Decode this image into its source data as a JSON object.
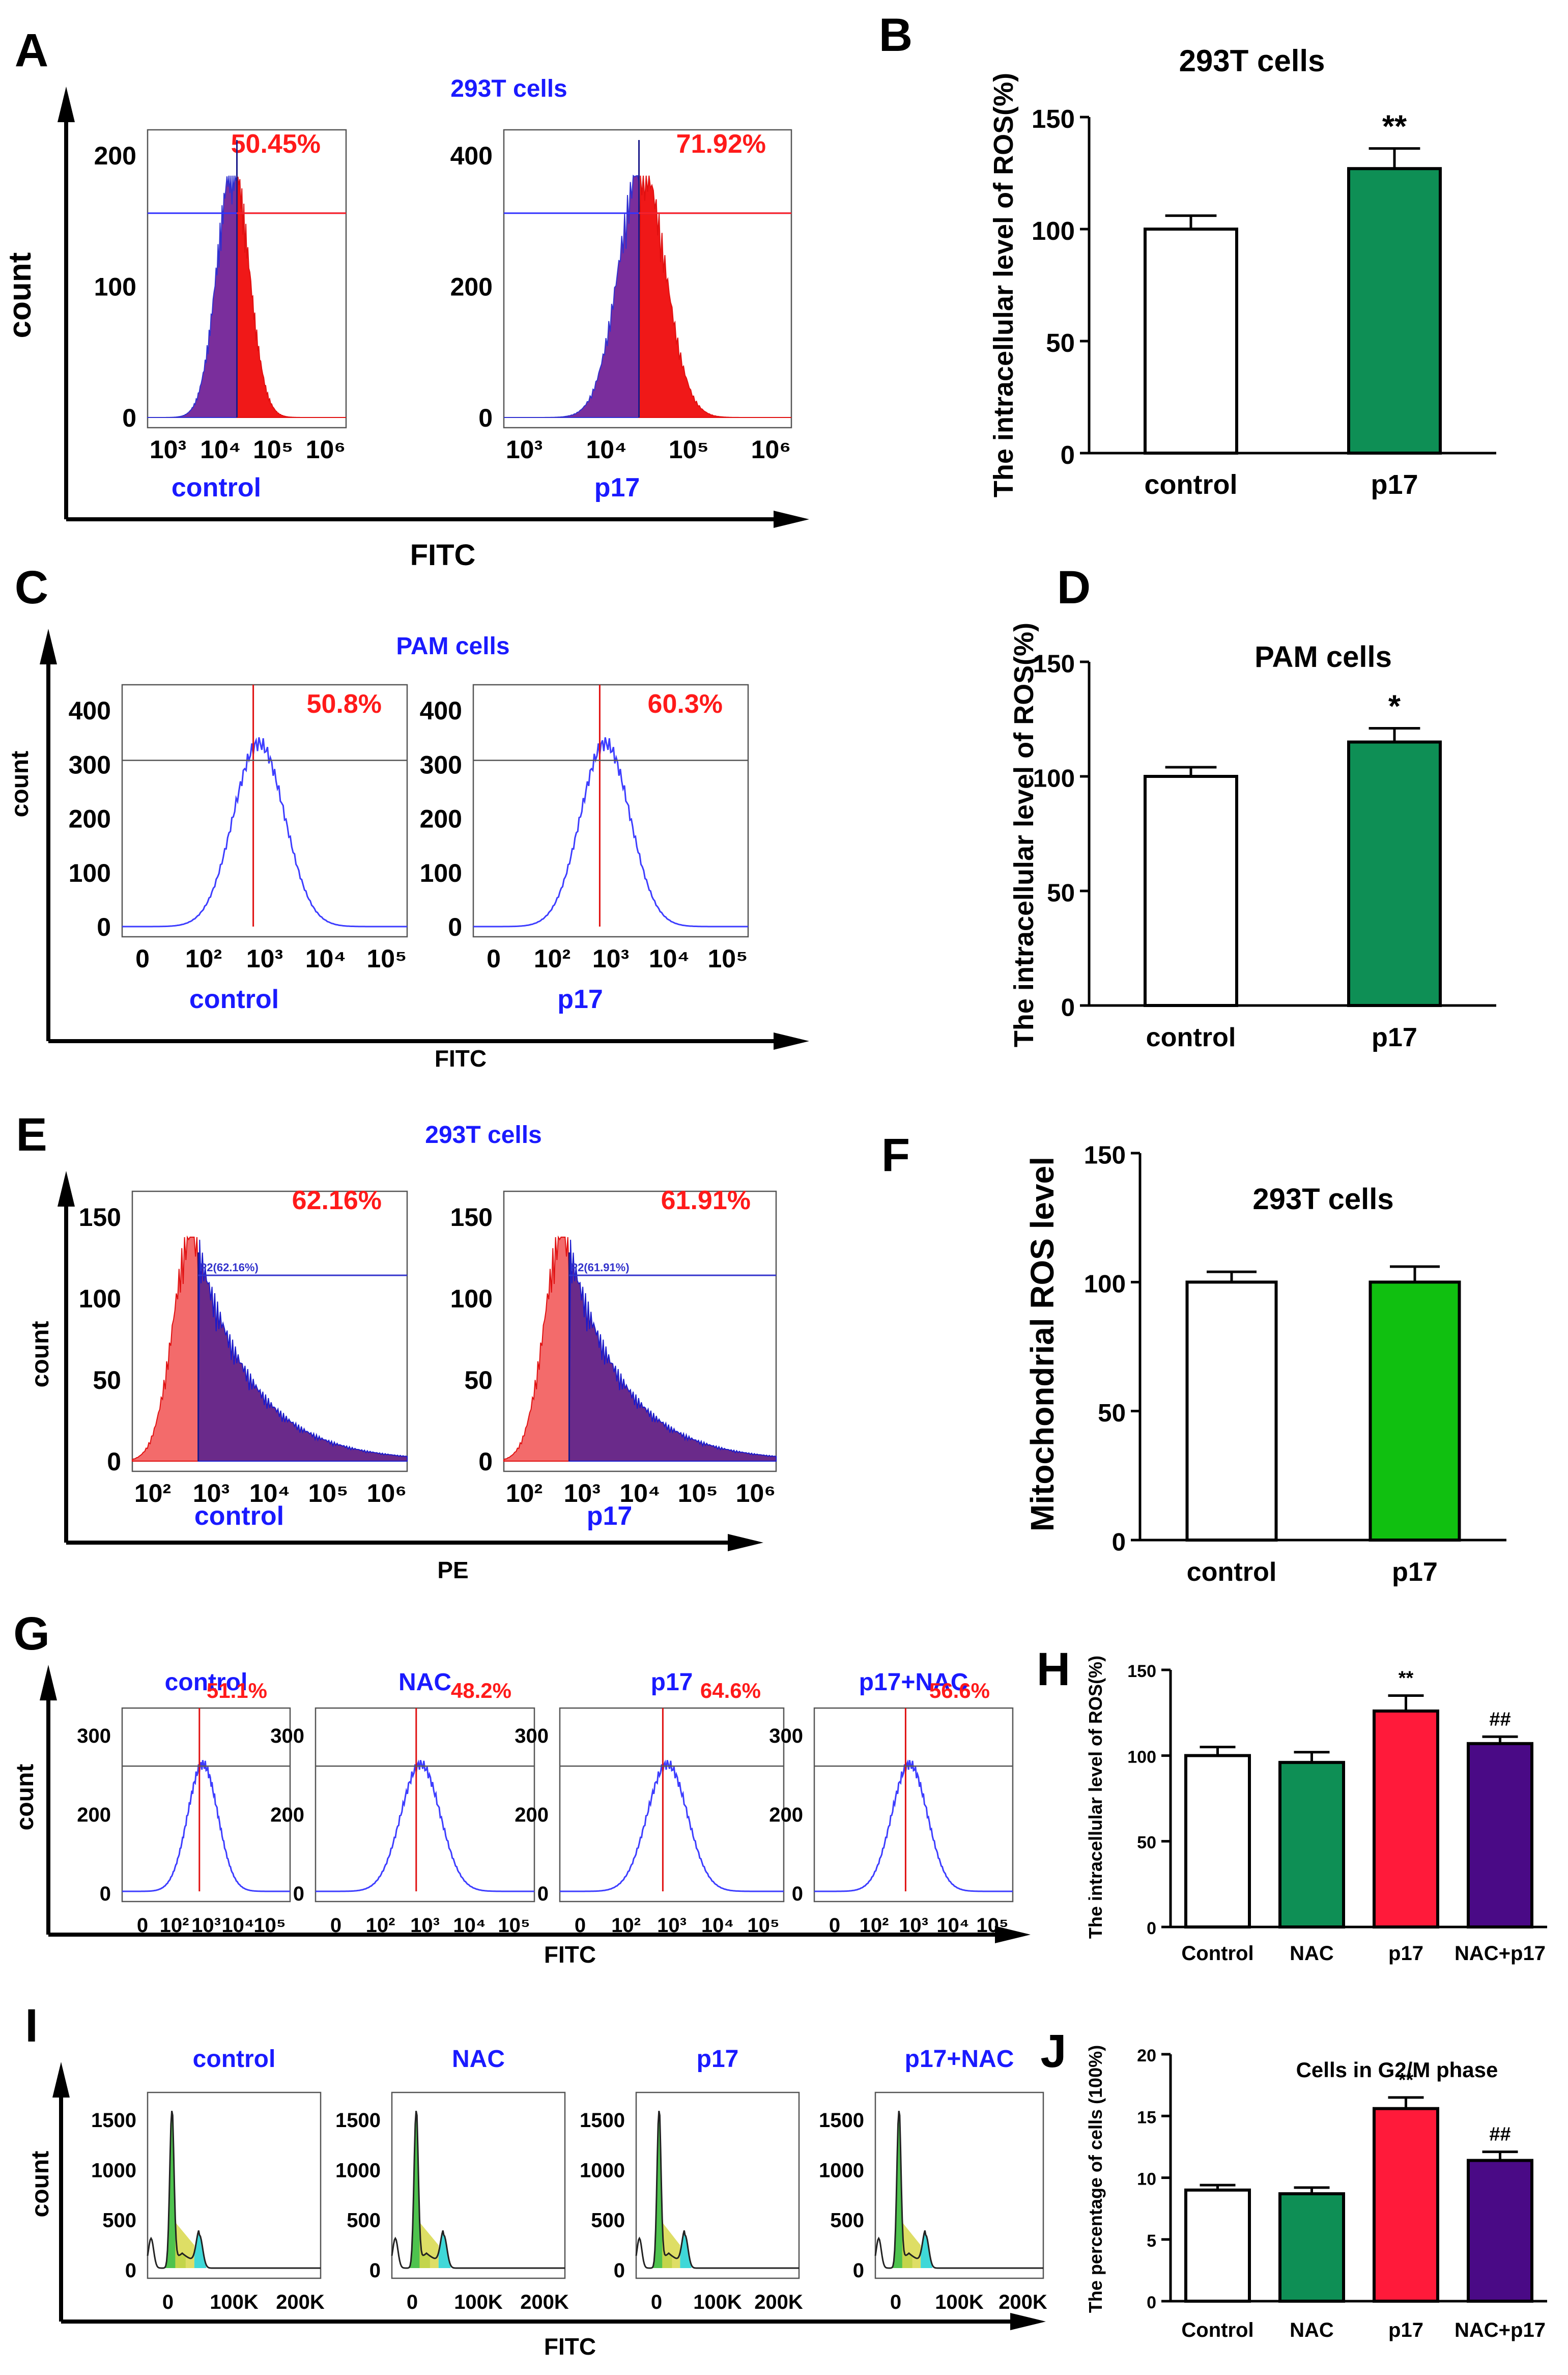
{
  "panels": [
    {
      "letter": "A",
      "kind": "histogram",
      "title": "293T cells",
      "xaxis_label": "FITC",
      "yaxis_label": "count",
      "style": "filled-purple-red",
      "ticks_x": [
        "10³",
        "10⁴",
        "10⁵",
        "10⁶"
      ],
      "subplots": [
        {
          "label": "control",
          "percent": "50.45%",
          "yticks": [
            "0",
            "100",
            "200"
          ]
        },
        {
          "label": "p17",
          "percent": "71.92%",
          "yticks": [
            "0",
            "200",
            "400"
          ]
        }
      ]
    },
    {
      "letter": "B",
      "kind": "bar",
      "title": "293T cells",
      "ylabel": "The intracellular level of ROS(%)"
    },
    {
      "letter": "C",
      "kind": "histogram",
      "title": "PAM cells",
      "xaxis_label": "FITC",
      "yaxis_label": "count",
      "style": "outline-blue",
      "ticks_x": [
        "0",
        "10²",
        "10³",
        "10⁴",
        "10⁵"
      ],
      "subplots": [
        {
          "label": "control",
          "percent": "50.8%",
          "yticks": [
            "0",
            "100",
            "200",
            "300",
            "400"
          ]
        },
        {
          "label": "p17",
          "percent": "60.3%",
          "yticks": [
            "0",
            "100",
            "200",
            "300",
            "400"
          ]
        }
      ]
    },
    {
      "letter": "D",
      "kind": "bar",
      "title": "PAM cells",
      "ylabel": "The intracellular level of ROS(%)"
    },
    {
      "letter": "E",
      "kind": "histogram",
      "title": "293T cells",
      "xaxis_label": "PE",
      "yaxis_label": "count",
      "style": "filled-red-purple",
      "ticks_x": [
        "10²",
        "10³",
        "10⁴",
        "10⁵",
        "10⁶"
      ],
      "subplots": [
        {
          "label": "control",
          "percent": "62.16%",
          "gate": "P2(62.16%)",
          "yticks": [
            "0",
            "50",
            "100",
            "150"
          ]
        },
        {
          "label": "p17",
          "percent": "61.91%",
          "gate": "P2(61.91%)",
          "yticks": [
            "0",
            "50",
            "100",
            "150"
          ]
        }
      ]
    },
    {
      "letter": "F",
      "kind": "bar",
      "title": "293T cells",
      "ylabel": "Mitochondrial ROS level"
    },
    {
      "letter": "G",
      "kind": "histogram",
      "title": "",
      "xaxis_label": "FITC",
      "yaxis_label": "count",
      "style": "outline-blue",
      "ticks_x": [
        "0",
        "10²",
        "10³",
        "10⁴",
        "10⁵"
      ],
      "subplots": [
        {
          "label": "control",
          "percent": "51.1%",
          "yticks": [
            "0",
            "200",
            "300"
          ]
        },
        {
          "label": "NAC",
          "percent": "48.2%",
          "yticks": [
            "0",
            "200",
            "300"
          ]
        },
        {
          "label": "p17",
          "percent": "64.6%",
          "yticks": [
            "0",
            "200",
            "300"
          ]
        },
        {
          "label": "p17+NAC",
          "percent": "56.6%",
          "yticks": [
            "0",
            "200",
            "300"
          ]
        }
      ]
    },
    {
      "letter": "H",
      "kind": "bar",
      "title": "",
      "ylabel": "The intracellular level of ROS(%)"
    },
    {
      "letter": "I",
      "kind": "histogram",
      "title": "",
      "xaxis_label": "FITC",
      "yaxis_label": "count",
      "style": "cell-cycle",
      "ticks_x": [
        "0",
        "100K",
        "200K"
      ],
      "subplots": [
        {
          "label": "control",
          "yticks": [
            "0",
            "500",
            "1000",
            "1500"
          ]
        },
        {
          "label": "NAC",
          "yticks": [
            "0",
            "500",
            "1000",
            "1500"
          ]
        },
        {
          "label": "p17",
          "yticks": [
            "0",
            "500",
            "1000",
            "1500"
          ]
        },
        {
          "label": "p17+NAC",
          "yticks": [
            "0",
            "500",
            "1000",
            "1500"
          ]
        }
      ]
    },
    {
      "letter": "J",
      "kind": "bar",
      "title": "Cells in G2/M phase",
      "ylabel": "The percentage of  cells (100%)"
    }
  ],
  "chart_data": [
    {
      "panel": "B",
      "type": "bar",
      "title": "293T cells",
      "ylabel": "The intracellular level of ROS(%)",
      "categories": [
        "control",
        "p17"
      ],
      "values": [
        100,
        127
      ],
      "errors": [
        6,
        9
      ],
      "significance": [
        "",
        "**"
      ],
      "colors": [
        "#ffffff",
        "#0e8f55"
      ],
      "ylim": [
        0,
        150
      ],
      "yticks": [
        0,
        50,
        100,
        150
      ]
    },
    {
      "panel": "D",
      "type": "bar",
      "title": "PAM cells",
      "ylabel": "The intracellular level of ROS(%)",
      "categories": [
        "control",
        "p17"
      ],
      "values": [
        100,
        115
      ],
      "errors": [
        4,
        6
      ],
      "significance": [
        "",
        "*"
      ],
      "colors": [
        "#ffffff",
        "#0e8f55"
      ],
      "ylim": [
        0,
        150
      ],
      "yticks": [
        0,
        50,
        100,
        150
      ]
    },
    {
      "panel": "F",
      "type": "bar",
      "title": "293T cells",
      "ylabel": "Mitochondrial ROS level",
      "categories": [
        "control",
        "p17"
      ],
      "values": [
        100,
        100
      ],
      "errors": [
        4,
        6
      ],
      "significance": [
        "",
        ""
      ],
      "colors": [
        "#ffffff",
        "#10c010"
      ],
      "ylim": [
        0,
        150
      ],
      "yticks": [
        0,
        50,
        100,
        150
      ]
    },
    {
      "panel": "H",
      "type": "bar",
      "title": "",
      "ylabel": "The intracellular level of ROS(%)",
      "categories": [
        "Control",
        "NAC",
        "p17",
        "NAC+p17"
      ],
      "values": [
        100,
        96,
        126,
        107
      ],
      "errors": [
        5,
        6,
        9,
        4
      ],
      "significance": [
        "",
        "",
        "**",
        "##"
      ],
      "colors": [
        "#ffffff",
        "#0e8f55",
        "#ff1a3a",
        "#4a0a86"
      ],
      "ylim": [
        0,
        150
      ],
      "yticks": [
        0,
        50,
        100,
        150
      ]
    },
    {
      "panel": "J",
      "type": "bar",
      "title": "Cells in G2/M phase",
      "ylabel": "The percentage of  cells (100%)",
      "categories": [
        "Control",
        "NAC",
        "p17",
        "NAC+p17"
      ],
      "values": [
        9.0,
        8.7,
        15.6,
        11.4
      ],
      "errors": [
        0.4,
        0.5,
        0.9,
        0.7
      ],
      "significance": [
        "",
        "",
        "**",
        "##"
      ],
      "colors": [
        "#ffffff",
        "#0e8f55",
        "#ff1a3a",
        "#4a0a86"
      ],
      "ylim": [
        0,
        20
      ],
      "yticks": [
        0,
        5,
        10,
        15,
        20
      ]
    }
  ]
}
